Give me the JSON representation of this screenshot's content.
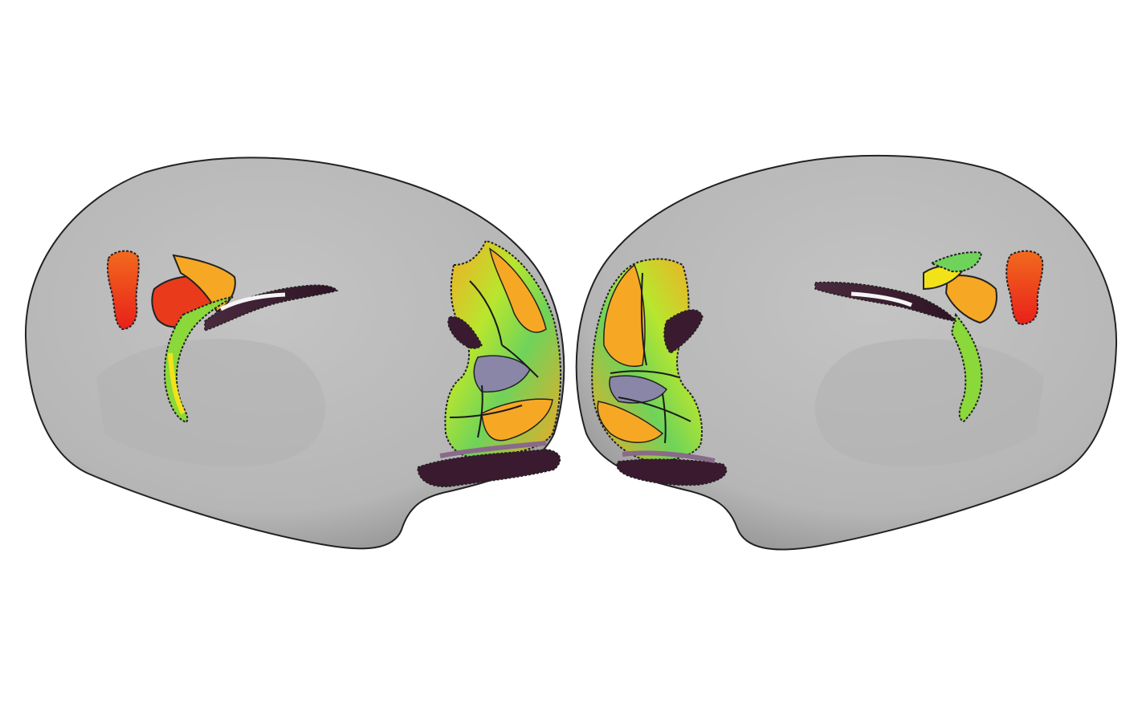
{
  "figure": {
    "background": "#ffffff",
    "hemispheres": [
      {
        "id": "left-hemisphere",
        "view": "medial"
      },
      {
        "id": "right-hemisphere",
        "view": "medial"
      }
    ],
    "colors": {
      "cortex": "#bdbdbd",
      "cortex_shade": "#8a8a8a",
      "outline": "#1a1a1a",
      "colormap": [
        "#3a1a2e",
        "#6a4a6e",
        "#8a86a8",
        "#6fd35a",
        "#b8e62e",
        "#f2e21a",
        "#f6a824",
        "#f2551e",
        "#e8201a"
      ]
    }
  }
}
